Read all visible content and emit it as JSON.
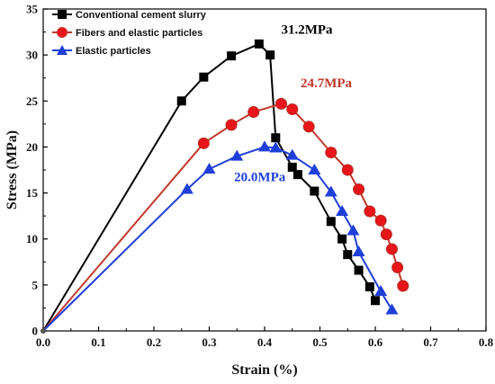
{
  "chart_data": {
    "type": "line",
    "xlabel": "Strain (%)",
    "ylabel": "Stress (MPa)",
    "xlim": [
      0,
      0.8
    ],
    "ylim": [
      0,
      35
    ],
    "xticks": [
      "0.0",
      "0.1",
      "0.2",
      "0.3",
      "0.4",
      "0.5",
      "0.6",
      "0.7",
      "0.8"
    ],
    "yticks": [
      "0",
      "5",
      "10",
      "15",
      "20",
      "25",
      "30",
      "35"
    ],
    "legend_position": "top-left",
    "grid": false,
    "series": [
      {
        "name": "Conventional cement slurry",
        "color": "#000000",
        "marker": "square",
        "points": [
          [
            0,
            0
          ],
          [
            0.25,
            25.0
          ],
          [
            0.29,
            27.6
          ],
          [
            0.34,
            29.9
          ],
          [
            0.39,
            31.2
          ],
          [
            0.41,
            30.0
          ],
          [
            0.42,
            21.0
          ],
          [
            0.45,
            17.8
          ],
          [
            0.46,
            17.0
          ],
          [
            0.49,
            15.2
          ],
          [
            0.52,
            11.9
          ],
          [
            0.54,
            10.0
          ],
          [
            0.55,
            8.3
          ],
          [
            0.57,
            6.6
          ],
          [
            0.59,
            4.8
          ],
          [
            0.6,
            3.3
          ]
        ]
      },
      {
        "name": "Fibers and elastic particles",
        "color": "#c0392b",
        "marker": "circle",
        "points": [
          [
            0,
            0
          ],
          [
            0.29,
            20.4
          ],
          [
            0.34,
            22.4
          ],
          [
            0.38,
            23.8
          ],
          [
            0.43,
            24.7
          ],
          [
            0.45,
            24.1
          ],
          [
            0.48,
            22.2
          ],
          [
            0.52,
            19.4
          ],
          [
            0.55,
            17.5
          ],
          [
            0.57,
            15.4
          ],
          [
            0.59,
            13.0
          ],
          [
            0.61,
            12.0
          ],
          [
            0.62,
            10.5
          ],
          [
            0.63,
            8.9
          ],
          [
            0.64,
            6.9
          ],
          [
            0.65,
            4.9
          ]
        ]
      },
      {
        "name": "Elastic particles",
        "color": "#1f3fd9",
        "marker": "triangle",
        "points": [
          [
            0,
            0
          ],
          [
            0.26,
            15.4
          ],
          [
            0.3,
            17.6
          ],
          [
            0.35,
            19.0
          ],
          [
            0.4,
            20.0
          ],
          [
            0.42,
            19.9
          ],
          [
            0.45,
            19.1
          ],
          [
            0.49,
            17.5
          ],
          [
            0.52,
            15.1
          ],
          [
            0.54,
            13.0
          ],
          [
            0.56,
            10.9
          ],
          [
            0.57,
            8.6
          ],
          [
            0.61,
            4.3
          ],
          [
            0.63,
            2.3
          ]
        ]
      }
    ],
    "annotations": [
      {
        "text": "31.2MPa",
        "color": "#000000",
        "x": 0.43,
        "y": 32.3
      },
      {
        "text": "24.7MPa",
        "color": "#c0392b",
        "x": 0.465,
        "y": 26.5
      },
      {
        "text": "20.0MPa",
        "color": "#1f3fd9",
        "x": 0.345,
        "y": 16.3
      }
    ]
  }
}
